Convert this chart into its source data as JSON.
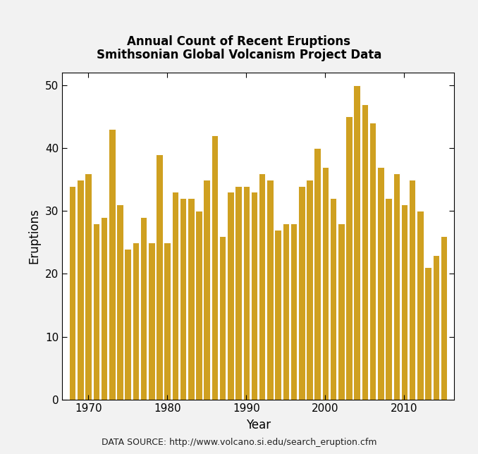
{
  "title_line1": "Annual Count of Recent Eruptions",
  "title_line2": "Smithsonian Global Volcanism Project Data",
  "xlabel": "Year",
  "ylabel": "Eruptions",
  "caption": "DATA SOURCE: http://www.volcano.si.edu/search_eruption.cfm",
  "bar_color": "#CFA020",
  "bar_edgecolor": "#FFFFFF",
  "plot_bg": "#FFFFFF",
  "fig_bg": "#FFFFFF",
  "border_color": "#BBBBBB",
  "ylim": [
    0,
    52
  ],
  "yticks": [
    0,
    10,
    20,
    30,
    40,
    50
  ],
  "xticks": [
    1970,
    1980,
    1990,
    2000,
    2010
  ],
  "years": [
    1968,
    1969,
    1970,
    1971,
    1972,
    1973,
    1974,
    1975,
    1976,
    1977,
    1978,
    1979,
    1980,
    1981,
    1982,
    1983,
    1984,
    1985,
    1986,
    1987,
    1988,
    1989,
    1990,
    1991,
    1992,
    1993,
    1994,
    1995,
    1996,
    1997,
    1998,
    1999,
    2000,
    2001,
    2002,
    2003,
    2004,
    2005,
    2006,
    2007,
    2008,
    2009,
    2010,
    2011,
    2012,
    2013,
    2014,
    2015
  ],
  "values": [
    34,
    35,
    36,
    28,
    29,
    43,
    31,
    24,
    25,
    29,
    25,
    39,
    25,
    33,
    32,
    32,
    30,
    35,
    42,
    26,
    33,
    34,
    34,
    33,
    36,
    35,
    27,
    28,
    28,
    34,
    35,
    40,
    37,
    32,
    28,
    45,
    50,
    47,
    44,
    37,
    32,
    36,
    31,
    35,
    30,
    21,
    23,
    26
  ],
  "title_fontsize": 12,
  "axis_label_fontsize": 12,
  "tick_fontsize": 11,
  "caption_fontsize": 9
}
